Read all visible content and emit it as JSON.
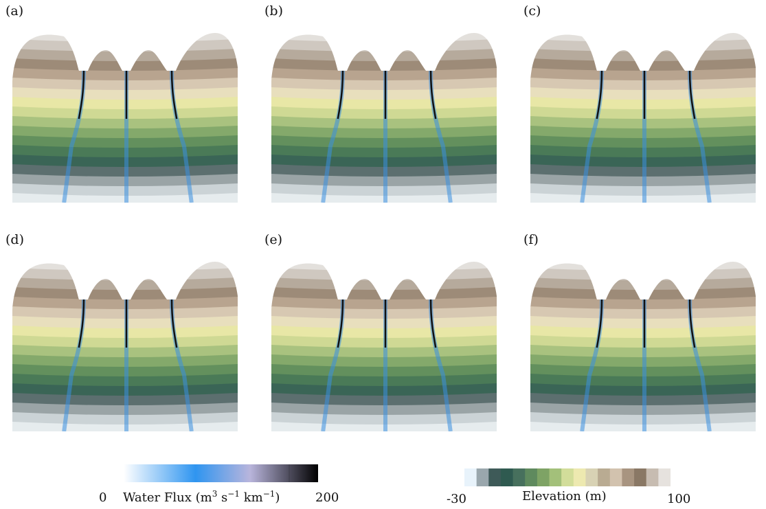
{
  "panels": [
    {
      "label": "(a)"
    },
    {
      "label": "(b)"
    },
    {
      "label": "(c)"
    },
    {
      "label": "(d)"
    },
    {
      "label": "(e)"
    },
    {
      "label": "(f)"
    }
  ],
  "colorbars": {
    "flux": {
      "prefix": "Water Flux (m",
      "sup1": "3",
      "mid": " s",
      "sup2": "−1",
      "suffix": " km",
      "sup3": "−1",
      "close": ")",
      "min": "0",
      "max": "200",
      "colors": [
        "#ffffff",
        "#2f95f0",
        "#b9b5dc",
        "#000000"
      ]
    },
    "elevation": {
      "title": "Elevation (m)",
      "min": "-30",
      "max": "100",
      "colors": [
        "#e8f3fb",
        "#9aa7ad",
        "#3e5a58",
        "#2f5a50",
        "#47705d",
        "#5f8a5e",
        "#7ea365",
        "#a3c07a",
        "#d2dd9a",
        "#ede9b0",
        "#d8d2b4",
        "#b9ab92",
        "#d2c2ae",
        "#a89480",
        "#8a7865",
        "#c7bcb1",
        "#e6e2de"
      ]
    }
  }
}
